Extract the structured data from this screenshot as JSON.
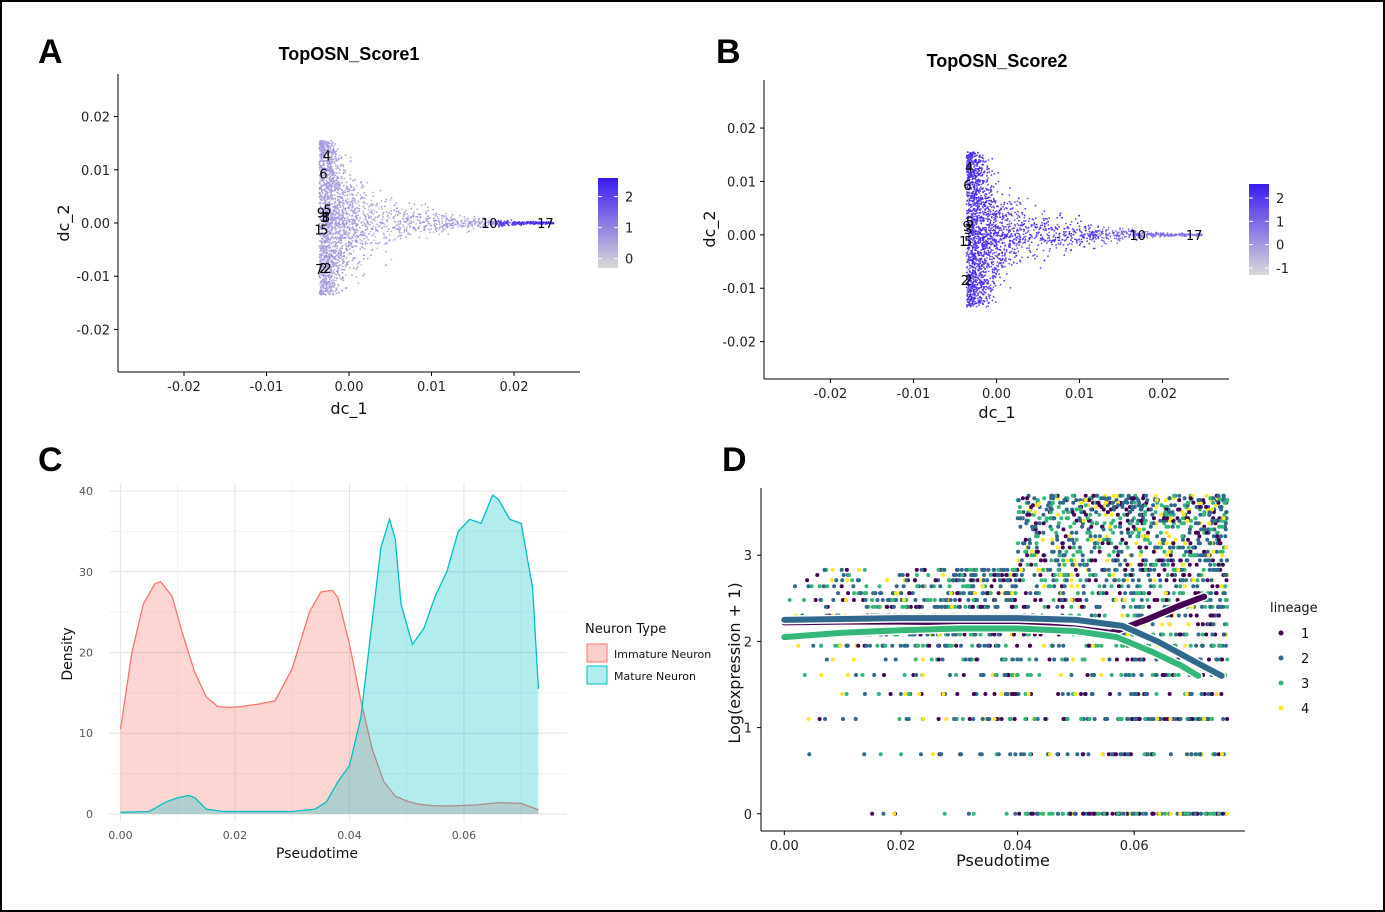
{
  "panels": {
    "A": {
      "letter": "A",
      "chart_data": {
        "type": "scatter",
        "title": "TopOSN_Score1",
        "xlabel": "dc_1",
        "ylabel": "dc_2",
        "xlim": [
          -0.028,
          0.028
        ],
        "ylim": [
          -0.028,
          0.028
        ],
        "xticks": [
          "-0.02",
          "-0.01",
          "0.00",
          "0.01",
          "0.02"
        ],
        "yticks": [
          "-0.02",
          "-0.01",
          "0.00",
          "0.01",
          "0.02"
        ],
        "xtick_values": [
          -0.02,
          -0.01,
          0.0,
          0.01,
          0.02
        ],
        "ytick_values": [
          -0.02,
          -0.01,
          0.0,
          0.01,
          0.02
        ],
        "colorbar": {
          "ticks": [
            "0",
            "1",
            "2"
          ],
          "tick_values": [
            0,
            1,
            2
          ],
          "range": [
            -0.3,
            2.6
          ],
          "low_color": "#d9d9d9",
          "high_color": "#3a1cf0"
        },
        "cluster_labels": [
          {
            "text": "4",
            "x": -0.0027,
            "y": 0.0127
          },
          {
            "text": "6",
            "x": -0.0031,
            "y": 0.0093
          },
          {
            "text": "5",
            "x": -0.0026,
            "y": 0.0025
          },
          {
            "text": "9",
            "x": -0.0034,
            "y": 0.002
          },
          {
            "text": "3",
            "x": -0.003,
            "y": 0.0011
          },
          {
            "text": "8",
            "x": -0.0028,
            "y": 0.0011
          },
          {
            "text": "1",
            "x": -0.0037,
            "y": -0.0012
          },
          {
            "text": "5",
            "x": -0.003,
            "y": -0.0012
          },
          {
            "text": "7",
            "x": -0.0036,
            "y": -0.0086
          },
          {
            "text": "2",
            "x": -0.0031,
            "y": -0.0085
          },
          {
            "text": "2",
            "x": -0.0026,
            "y": -0.0085
          },
          {
            "text": "10",
            "x": 0.017,
            "y": 0.0
          },
          {
            "text": "17",
            "x": 0.0238,
            "y": 0.0
          }
        ],
        "cloud": {
          "spine_x": -0.003,
          "top_y": 0.0155,
          "bottom_y": -0.0135,
          "tail_end_x": 0.0248,
          "color_level": "low"
        }
      }
    },
    "B": {
      "letter": "B",
      "chart_data": {
        "type": "scatter",
        "title": "TopOSN_Score2",
        "xlabel": "dc_1",
        "ylabel": "dc_2",
        "xlim": [
          -0.028,
          0.028
        ],
        "ylim": [
          -0.027,
          0.029
        ],
        "xticks": [
          "-0.02",
          "-0.01",
          "0.00",
          "0.01",
          "0.02"
        ],
        "yticks": [
          "-0.02",
          "-0.01",
          "0.00",
          "0.01",
          "0.02"
        ],
        "xtick_values": [
          -0.02,
          -0.01,
          0.0,
          0.01,
          0.02
        ],
        "ytick_values": [
          -0.02,
          -0.01,
          0.0,
          0.01,
          0.02
        ],
        "colorbar": {
          "ticks": [
            "-1",
            "0",
            "1",
            "2"
          ],
          "tick_values": [
            -1,
            0,
            1,
            2
          ],
          "range": [
            -1.3,
            2.6
          ],
          "low_color": "#d9d9d9",
          "high_color": "#3a1cf0"
        },
        "cluster_labels": [
          {
            "text": "4",
            "x": -0.0033,
            "y": 0.0127
          },
          {
            "text": "6",
            "x": -0.0035,
            "y": 0.0093
          },
          {
            "text": "5",
            "x": -0.0032,
            "y": 0.0025
          },
          {
            "text": "9",
            "x": -0.0036,
            "y": 0.0017
          },
          {
            "text": "3",
            "x": -0.0034,
            "y": 0.0011
          },
          {
            "text": "1",
            "x": -0.004,
            "y": -0.0012
          },
          {
            "text": "5",
            "x": -0.0034,
            "y": -0.0012
          },
          {
            "text": "2",
            "x": -0.0038,
            "y": -0.0085
          },
          {
            "text": "2",
            "x": -0.0034,
            "y": -0.0085
          },
          {
            "text": "10",
            "x": 0.017,
            "y": 0.0
          },
          {
            "text": "17",
            "x": 0.0238,
            "y": 0.0
          }
        ],
        "cloud": {
          "spine_x": -0.003,
          "top_y": 0.0155,
          "bottom_y": -0.0135,
          "tail_end_x": 0.0248,
          "color_level": "high"
        }
      }
    },
    "C": {
      "letter": "C",
      "chart_data": {
        "type": "area",
        "xlabel": "Pseudotime",
        "ylabel": "Density",
        "xlim": [
          -0.002,
          0.078
        ],
        "ylim": [
          -1,
          41
        ],
        "xticks": [
          "0.00",
          "0.02",
          "0.04",
          "0.06"
        ],
        "yticks": [
          "0",
          "10",
          "20",
          "30",
          "40"
        ],
        "xtick_values": [
          0.0,
          0.02,
          0.04,
          0.06
        ],
        "ytick_values": [
          0,
          10,
          20,
          30,
          40
        ],
        "legend": {
          "title": "Neuron Type",
          "position": "right"
        },
        "series": [
          {
            "name": "Immature Neuron",
            "fill": "#f8766d",
            "x": [
              0.0,
              0.002,
              0.004,
              0.006,
              0.007,
              0.009,
              0.011,
              0.013,
              0.015,
              0.017,
              0.019,
              0.021,
              0.024,
              0.027,
              0.03,
              0.033,
              0.035,
              0.037,
              0.038,
              0.04,
              0.042,
              0.044,
              0.046,
              0.048,
              0.05,
              0.052,
              0.055,
              0.058,
              0.062,
              0.066,
              0.07,
              0.073
            ],
            "y": [
              10.5,
              20.0,
              26.0,
              28.5,
              28.8,
              27.0,
              22.0,
              17.5,
              14.5,
              13.3,
              13.2,
              13.3,
              13.6,
              14.0,
              18.0,
              25.0,
              27.5,
              27.7,
              26.8,
              21.0,
              14.0,
              8.0,
              4.0,
              2.2,
              1.6,
              1.2,
              1.0,
              1.0,
              1.1,
              1.4,
              1.3,
              0.5
            ]
          },
          {
            "name": "Mature Neuron",
            "fill": "#00bfc4",
            "x": [
              0.0,
              0.005,
              0.008,
              0.01,
              0.012,
              0.013,
              0.015,
              0.018,
              0.022,
              0.026,
              0.03,
              0.034,
              0.036,
              0.038,
              0.04,
              0.042,
              0.044,
              0.0455,
              0.047,
              0.048,
              0.049,
              0.051,
              0.053,
              0.055,
              0.057,
              0.059,
              0.061,
              0.063,
              0.065,
              0.066,
              0.068,
              0.07,
              0.072,
              0.073
            ],
            "y": [
              0.2,
              0.3,
              1.5,
              2.0,
              2.3,
              2.0,
              0.6,
              0.3,
              0.3,
              0.3,
              0.3,
              0.6,
              1.5,
              4.0,
              6.0,
              12.0,
              24.0,
              33.0,
              36.5,
              34.0,
              26.0,
              21.0,
              23.0,
              27.0,
              30.0,
              35.0,
              36.5,
              36.0,
              39.5,
              39.0,
              36.5,
              36.0,
              28.0,
              15.5
            ]
          }
        ]
      }
    },
    "D": {
      "letter": "D",
      "chart_data": {
        "type": "scatter",
        "xlabel": "Pseudotime",
        "ylabel": "Log(expression + 1)",
        "xlim": [
          -0.004,
          0.079
        ],
        "ylim": [
          -0.2,
          3.78
        ],
        "xticks": [
          "0.00",
          "0.02",
          "0.04",
          "0.06"
        ],
        "yticks": [
          "0",
          "1",
          "2",
          "3"
        ],
        "xtick_values": [
          0.0,
          0.02,
          0.04,
          0.06
        ],
        "ytick_values": [
          0,
          1,
          2,
          3
        ],
        "legend": {
          "title": "lineage",
          "position": "right"
        },
        "series": [
          {
            "name": "1",
            "color": "#440154",
            "curve_x": [
              0.0,
              0.01,
              0.02,
              0.03,
              0.04,
              0.05,
              0.056,
              0.062,
              0.068,
              0.072
            ],
            "curve_y": [
              2.22,
              2.23,
              2.23,
              2.22,
              2.2,
              2.15,
              2.1,
              2.25,
              2.42,
              2.52
            ]
          },
          {
            "name": "2",
            "color": "#31688e",
            "curve_x": [
              0.0,
              0.01,
              0.02,
              0.03,
              0.04,
              0.05,
              0.058,
              0.064,
              0.07,
              0.075
            ],
            "curve_y": [
              2.25,
              2.26,
              2.27,
              2.27,
              2.27,
              2.25,
              2.18,
              2.0,
              1.78,
              1.6
            ]
          },
          {
            "name": "3",
            "color": "#35b779",
            "curve_x": [
              0.0,
              0.01,
              0.02,
              0.03,
              0.04,
              0.05,
              0.057,
              0.063,
              0.068,
              0.071
            ],
            "curve_y": [
              2.05,
              2.1,
              2.13,
              2.15,
              2.15,
              2.12,
              2.05,
              1.88,
              1.72,
              1.6
            ]
          },
          {
            "name": "4",
            "color": "#fde725",
            "curve_x": [
              0.0,
              0.01,
              0.02,
              0.03,
              0.04,
              0.048,
              0.052,
              0.056
            ],
            "curve_y": [
              2.22,
              2.25,
              2.26,
              2.25,
              2.24,
              2.2,
              2.14,
              2.08
            ]
          }
        ],
        "y_levels": [
          0.0,
          0.69,
          1.1,
          1.39,
          1.61,
          1.79,
          1.95,
          2.08,
          2.2,
          2.3,
          2.4,
          2.48,
          2.56,
          2.64,
          2.71,
          2.77,
          2.83,
          2.89,
          2.94,
          3.0,
          3.04,
          3.09,
          3.14,
          3.18,
          3.22,
          3.26,
          3.3,
          3.33,
          3.37,
          3.4,
          3.43,
          3.47,
          3.5,
          3.53,
          3.56,
          3.58,
          3.61,
          3.64,
          3.66,
          3.69
        ]
      }
    }
  }
}
